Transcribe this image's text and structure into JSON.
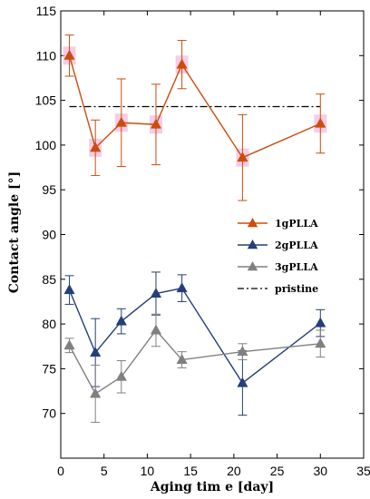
{
  "chart_data": {
    "type": "line",
    "xlabel": "Aging tim e [day]",
    "ylabel": "Contact angle [°]",
    "xlim": [
      0,
      35
    ],
    "ylim": [
      65,
      115
    ],
    "xticks": [
      0,
      5,
      10,
      15,
      20,
      25,
      30,
      35
    ],
    "yticks": [
      70,
      75,
      80,
      85,
      90,
      95,
      100,
      105,
      110,
      115
    ],
    "legend_position": "right-middle",
    "grid": false,
    "series": [
      {
        "name": "1gPLLA",
        "color": "#cc4d0a",
        "highlight": "#f4bfe3",
        "marker": "triangle",
        "x": [
          1,
          4,
          7,
          11,
          14,
          21,
          30
        ],
        "y": [
          110,
          99.7,
          102.5,
          102.3,
          109,
          98.6,
          102.4
        ],
        "err": [
          2.3,
          3.1,
          4.9,
          4.5,
          2.7,
          4.8,
          3.3
        ]
      },
      {
        "name": "2gPLLA",
        "color": "#243f78",
        "marker": "triangle",
        "x": [
          1,
          4,
          7,
          11,
          14,
          21,
          30
        ],
        "y": [
          83.8,
          76.8,
          80.3,
          83.4,
          84,
          73.4,
          80.1
        ],
        "err": [
          1.6,
          3.8,
          1.4,
          2.4,
          1.5,
          3.6,
          1.5
        ]
      },
      {
        "name": "3gPLLA",
        "color": "#808080",
        "marker": "triangle",
        "x": [
          1,
          4,
          7,
          11,
          14,
          21,
          30
        ],
        "y": [
          77.6,
          72.2,
          74.1,
          79.3,
          76,
          76.9,
          77.8
        ],
        "err": [
          0.8,
          3.2,
          1.8,
          1.8,
          0.9,
          0.9,
          1.5
        ]
      }
    ],
    "reference_lines": [
      {
        "name": "pristine",
        "y": 104.3,
        "x_range": [
          1,
          30
        ],
        "style": "dash-dot",
        "color": "#000000"
      }
    ]
  }
}
